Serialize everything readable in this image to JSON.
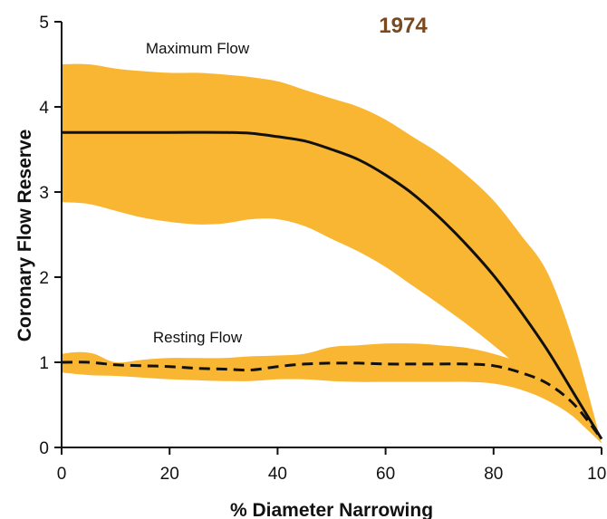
{
  "chart_data": {
    "type": "area",
    "title": "1974",
    "xlabel": "% Diameter Narrowing",
    "ylabel": "Coronary Flow Reserve",
    "xlim": [
      0,
      100
    ],
    "ylim": [
      0,
      5
    ],
    "x_ticks": [
      "0",
      "20",
      "40",
      "60",
      "80",
      "100"
    ],
    "y_ticks": [
      "0",
      "1",
      "2",
      "3",
      "4",
      "5"
    ],
    "grid": false,
    "legend": "none",
    "colors": {
      "band": "#F9B632",
      "line": "#111111",
      "title": "#7A4A1E"
    },
    "series": [
      {
        "name": "Maximum Flow",
        "line_style": "solid",
        "mean": [
          [
            0,
            3.7
          ],
          [
            10,
            3.7
          ],
          [
            20,
            3.7
          ],
          [
            30,
            3.7
          ],
          [
            35,
            3.69
          ],
          [
            40,
            3.65
          ],
          [
            45,
            3.6
          ],
          [
            50,
            3.5
          ],
          [
            55,
            3.38
          ],
          [
            60,
            3.2
          ],
          [
            65,
            2.98
          ],
          [
            70,
            2.7
          ],
          [
            75,
            2.38
          ],
          [
            80,
            2.02
          ],
          [
            85,
            1.6
          ],
          [
            90,
            1.14
          ],
          [
            95,
            0.62
          ],
          [
            100,
            0.1
          ]
        ],
        "upper": [
          [
            0,
            4.5
          ],
          [
            5,
            4.5
          ],
          [
            10,
            4.45
          ],
          [
            15,
            4.42
          ],
          [
            20,
            4.4
          ],
          [
            25,
            4.4
          ],
          [
            30,
            4.38
          ],
          [
            35,
            4.35
          ],
          [
            40,
            4.3
          ],
          [
            45,
            4.2
          ],
          [
            50,
            4.1
          ],
          [
            55,
            4.0
          ],
          [
            60,
            3.85
          ],
          [
            65,
            3.65
          ],
          [
            70,
            3.45
          ],
          [
            75,
            3.2
          ],
          [
            80,
            2.9
          ],
          [
            85,
            2.5
          ],
          [
            90,
            2.05
          ],
          [
            95,
            1.2
          ],
          [
            100,
            0.05
          ]
        ],
        "lower": [
          [
            0,
            2.88
          ],
          [
            5,
            2.86
          ],
          [
            10,
            2.78
          ],
          [
            15,
            2.7
          ],
          [
            20,
            2.65
          ],
          [
            25,
            2.62
          ],
          [
            30,
            2.63
          ],
          [
            35,
            2.68
          ],
          [
            40,
            2.68
          ],
          [
            45,
            2.6
          ],
          [
            50,
            2.45
          ],
          [
            55,
            2.3
          ],
          [
            60,
            2.12
          ],
          [
            65,
            1.9
          ],
          [
            70,
            1.68
          ],
          [
            75,
            1.45
          ],
          [
            80,
            1.2
          ],
          [
            85,
            0.93
          ],
          [
            90,
            0.65
          ],
          [
            95,
            0.35
          ],
          [
            100,
            0.05
          ]
        ]
      },
      {
        "name": "Resting Flow",
        "line_style": "dashed",
        "mean": [
          [
            0,
            1.0
          ],
          [
            5,
            1.0
          ],
          [
            10,
            0.97
          ],
          [
            15,
            0.96
          ],
          [
            20,
            0.95
          ],
          [
            25,
            0.93
          ],
          [
            30,
            0.92
          ],
          [
            35,
            0.91
          ],
          [
            40,
            0.95
          ],
          [
            45,
            0.98
          ],
          [
            50,
            0.99
          ],
          [
            55,
            0.99
          ],
          [
            60,
            0.98
          ],
          [
            65,
            0.98
          ],
          [
            70,
            0.98
          ],
          [
            75,
            0.98
          ],
          [
            80,
            0.96
          ],
          [
            85,
            0.88
          ],
          [
            90,
            0.75
          ],
          [
            95,
            0.5
          ],
          [
            100,
            0.1
          ]
        ],
        "upper": [
          [
            0,
            1.1
          ],
          [
            3,
            1.12
          ],
          [
            6,
            1.1
          ],
          [
            10,
            1.0
          ],
          [
            15,
            1.03
          ],
          [
            20,
            1.05
          ],
          [
            25,
            1.05
          ],
          [
            30,
            1.05
          ],
          [
            35,
            1.07
          ],
          [
            40,
            1.08
          ],
          [
            45,
            1.1
          ],
          [
            50,
            1.18
          ],
          [
            55,
            1.2
          ],
          [
            60,
            1.22
          ],
          [
            65,
            1.22
          ],
          [
            70,
            1.2
          ],
          [
            75,
            1.17
          ],
          [
            80,
            1.1
          ],
          [
            85,
            1.0
          ],
          [
            90,
            0.88
          ],
          [
            95,
            0.6
          ],
          [
            100,
            0.05
          ]
        ],
        "lower": [
          [
            0,
            0.88
          ],
          [
            5,
            0.85
          ],
          [
            10,
            0.84
          ],
          [
            15,
            0.82
          ],
          [
            20,
            0.8
          ],
          [
            25,
            0.79
          ],
          [
            30,
            0.78
          ],
          [
            35,
            0.78
          ],
          [
            40,
            0.8
          ],
          [
            45,
            0.8
          ],
          [
            50,
            0.78
          ],
          [
            55,
            0.77
          ],
          [
            60,
            0.77
          ],
          [
            65,
            0.77
          ],
          [
            70,
            0.77
          ],
          [
            75,
            0.77
          ],
          [
            80,
            0.75
          ],
          [
            85,
            0.68
          ],
          [
            90,
            0.55
          ],
          [
            95,
            0.35
          ],
          [
            100,
            0.05
          ]
        ]
      }
    ]
  }
}
